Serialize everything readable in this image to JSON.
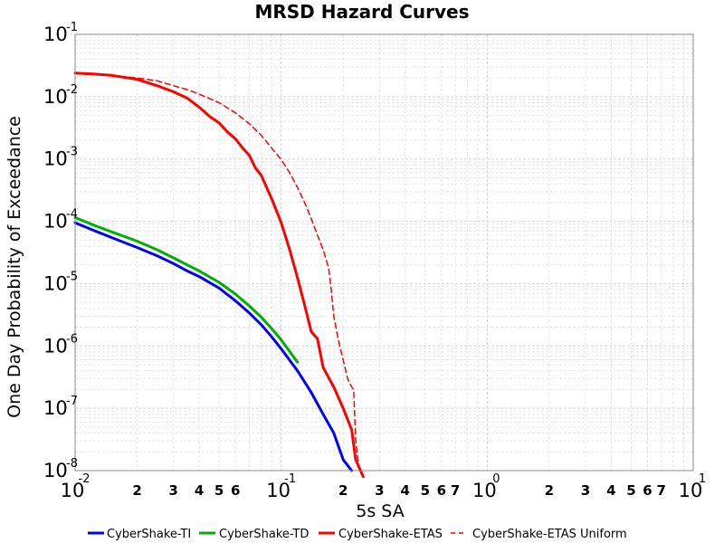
{
  "chart_data": {
    "type": "line",
    "title": "MRSD Hazard Curves",
    "xlabel": "5s SA",
    "ylabel": "One Day Probability of Exceedance",
    "x_scale": "log",
    "y_scale": "log",
    "xlim": [
      0.01,
      10
    ],
    "ylim": [
      1e-08,
      0.1
    ],
    "grid": true,
    "legend_position": "bottom",
    "y_ticks": [
      {
        "base": "10",
        "exp": "-1",
        "value": 0.1
      },
      {
        "base": "10",
        "exp": "-2",
        "value": 0.01
      },
      {
        "base": "10",
        "exp": "-3",
        "value": 0.001
      },
      {
        "base": "10",
        "exp": "-4",
        "value": 0.0001
      },
      {
        "base": "10",
        "exp": "-5",
        "value": 1e-05
      },
      {
        "base": "10",
        "exp": "-6",
        "value": 1e-06
      },
      {
        "base": "10",
        "exp": "-7",
        "value": 1e-07
      },
      {
        "base": "10",
        "exp": "-8",
        "value": 1e-08
      }
    ],
    "x_major_ticks": [
      {
        "base": "10",
        "exp": "-2",
        "value": 0.01
      },
      {
        "base": "10",
        "exp": "-1",
        "value": 0.1
      },
      {
        "base": "10",
        "exp": "0",
        "value": 1
      },
      {
        "base": "10",
        "exp": "1",
        "value": 10
      }
    ],
    "x_minor_ticks": [
      {
        "label": "2",
        "value": 0.02
      },
      {
        "label": "3",
        "value": 0.03
      },
      {
        "label": "4",
        "value": 0.04
      },
      {
        "label": "5",
        "value": 0.05
      },
      {
        "label": "6",
        "value": 0.06
      },
      {
        "label": "2",
        "value": 0.2
      },
      {
        "label": "3",
        "value": 0.3
      },
      {
        "label": "4",
        "value": 0.4
      },
      {
        "label": "5",
        "value": 0.5
      },
      {
        "label": "6",
        "value": 0.6
      },
      {
        "label": "7",
        "value": 0.7
      },
      {
        "label": "2",
        "value": 2
      },
      {
        "label": "3",
        "value": 3
      },
      {
        "label": "4",
        "value": 4
      },
      {
        "label": "5",
        "value": 5
      },
      {
        "label": "6",
        "value": 6
      },
      {
        "label": "7",
        "value": 7
      }
    ],
    "series": [
      {
        "name": "CyberShake-TI",
        "color": "#0000ff",
        "dash": "solid",
        "points": [
          [
            0.01,
            9.5e-05
          ],
          [
            0.0125,
            7e-05
          ],
          [
            0.015,
            5.5e-05
          ],
          [
            0.02,
            3.8e-05
          ],
          [
            0.025,
            2.8e-05
          ],
          [
            0.03,
            2.1e-05
          ],
          [
            0.035,
            1.6e-05
          ],
          [
            0.04,
            1.3e-05
          ],
          [
            0.05,
            8.5e-06
          ],
          [
            0.06,
            5.3e-06
          ],
          [
            0.07,
            3.4e-06
          ],
          [
            0.08,
            2.2e-06
          ],
          [
            0.09,
            1.4e-06
          ],
          [
            0.1,
            9e-07
          ],
          [
            0.12,
            4e-07
          ],
          [
            0.14,
            1.8e-07
          ],
          [
            0.16,
            8e-08
          ],
          [
            0.18,
            4e-08
          ],
          [
            0.2,
            1.5e-08
          ],
          [
            0.22,
            1e-08
          ]
        ]
      },
      {
        "name": "CyberShake-TD",
        "color": "#00b000",
        "dash": "solid",
        "points": [
          [
            0.01,
            0.000115
          ],
          [
            0.0125,
            8.5e-05
          ],
          [
            0.015,
            6.8e-05
          ],
          [
            0.02,
            4.8e-05
          ],
          [
            0.025,
            3.5e-05
          ],
          [
            0.03,
            2.6e-05
          ],
          [
            0.035,
            2e-05
          ],
          [
            0.04,
            1.6e-05
          ],
          [
            0.05,
            1.05e-05
          ],
          [
            0.06,
            6.8e-06
          ],
          [
            0.07,
            4.4e-06
          ],
          [
            0.08,
            2.9e-06
          ],
          [
            0.09,
            1.9e-06
          ],
          [
            0.1,
            1.25e-06
          ],
          [
            0.12,
            5.5e-07
          ]
        ]
      },
      {
        "name": "CyberShake-ETAS",
        "color": "#ff0000",
        "dash": "solid",
        "points": [
          [
            0.01,
            0.024
          ],
          [
            0.0125,
            0.023
          ],
          [
            0.015,
            0.022
          ],
          [
            0.02,
            0.019
          ],
          [
            0.025,
            0.015
          ],
          [
            0.03,
            0.012
          ],
          [
            0.035,
            0.0095
          ],
          [
            0.04,
            0.0068
          ],
          [
            0.045,
            0.0048
          ],
          [
            0.05,
            0.0038
          ],
          [
            0.055,
            0.0027
          ],
          [
            0.06,
            0.0021
          ],
          [
            0.065,
            0.0015
          ],
          [
            0.07,
            0.00115
          ],
          [
            0.075,
            0.00072
          ],
          [
            0.08,
            0.00055
          ],
          [
            0.085,
            0.00035
          ],
          [
            0.09,
            0.00023
          ],
          [
            0.1,
            9.5e-05
          ],
          [
            0.11,
            3.5e-05
          ],
          [
            0.12,
            1.25e-05
          ],
          [
            0.13,
            4.5e-06
          ],
          [
            0.14,
            1.7e-06
          ],
          [
            0.15,
            1.3e-06
          ],
          [
            0.16,
            4.5e-07
          ],
          [
            0.18,
            2.2e-07
          ],
          [
            0.2,
            1e-07
          ],
          [
            0.22,
            4.5e-08
          ],
          [
            0.23,
            1.5e-08
          ],
          [
            0.25,
            8e-09
          ]
        ]
      },
      {
        "name": "CyberShake-ETAS Uniform",
        "color": "#ff0000",
        "dash": "dashed",
        "points": [
          [
            0.015,
            0.022
          ],
          [
            0.02,
            0.02
          ],
          [
            0.025,
            0.018
          ],
          [
            0.03,
            0.015
          ],
          [
            0.035,
            0.013
          ],
          [
            0.04,
            0.011
          ],
          [
            0.05,
            0.008
          ],
          [
            0.06,
            0.0055
          ],
          [
            0.07,
            0.0037
          ],
          [
            0.08,
            0.0024
          ],
          [
            0.09,
            0.0015
          ],
          [
            0.1,
            0.00098
          ],
          [
            0.11,
            0.0006
          ],
          [
            0.12,
            0.00035
          ],
          [
            0.13,
            0.0002
          ],
          [
            0.14,
            0.00011
          ],
          [
            0.15,
            6e-05
          ],
          [
            0.16,
            3.5e-05
          ],
          [
            0.17,
            1.8e-05
          ],
          [
            0.175,
            8e-06
          ],
          [
            0.18,
            3e-06
          ],
          [
            0.19,
            1.2e-06
          ],
          [
            0.2,
            6e-07
          ],
          [
            0.21,
            3e-07
          ],
          [
            0.22,
            2.2e-07
          ],
          [
            0.225,
            2e-07
          ],
          [
            0.23,
            3e-08
          ],
          [
            0.24,
            1e-08
          ]
        ]
      }
    ]
  }
}
